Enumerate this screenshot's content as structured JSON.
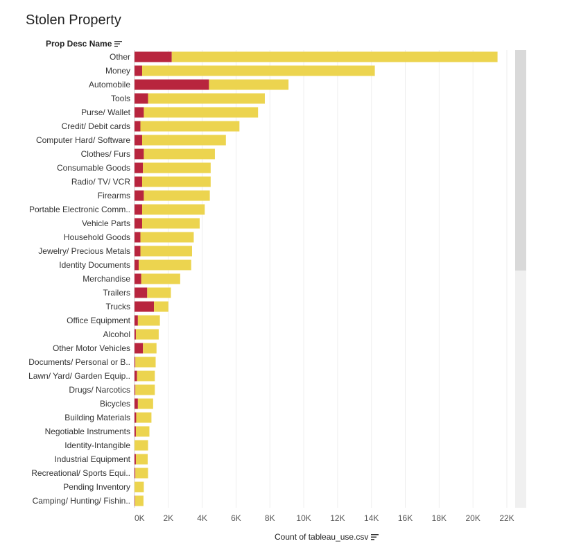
{
  "title": "Stolen Property",
  "row_header": "Prop Desc Name",
  "x_axis_title": "Count of tableau_use.csv",
  "colors": {
    "red": "#b8253e",
    "yellow": "#ecd44f",
    "grid": "#eeeeee"
  },
  "icons": {
    "sort": "sort-descending-icon"
  },
  "chart_data": {
    "type": "bar",
    "orientation": "horizontal",
    "stacked": true,
    "title": "Stolen Property",
    "xlabel": "Count of tableau_use.csv",
    "ylabel": "Prop Desc Name",
    "xlim": [
      0,
      22000
    ],
    "x_ticks": [
      0,
      2000,
      4000,
      6000,
      8000,
      10000,
      12000,
      14000,
      16000,
      18000,
      20000,
      22000
    ],
    "x_tick_labels": [
      "0K",
      "2K",
      "4K",
      "6K",
      "8K",
      "10K",
      "12K",
      "14K",
      "16K",
      "18K",
      "20K",
      "22K"
    ],
    "categories": [
      "Other",
      "Money",
      "Automobile",
      "Tools",
      "Purse/ Wallet",
      "Credit/ Debit cards",
      "Computer Hard/ Software",
      "Clothes/ Furs",
      "Consumable Goods",
      "Radio/ TV/ VCR",
      "Firearms",
      "Portable Electronic Comm..",
      "Vehicle Parts",
      "Household Goods",
      "Jewelry/ Precious Metals",
      "Identity Documents",
      "Merchandise",
      "Trailers",
      "Trucks",
      "Office Equipment",
      "Alcohol",
      "Other Motor Vehicles",
      "Documents/ Personal or B..",
      "Lawn/ Yard/ Garden Equip..",
      "Drugs/ Narcotics",
      "Bicycles",
      "Building Materials",
      "Negotiable Instruments",
      "Identity-Intangible",
      "Industrial Equipment",
      "Recreational/ Sports Equi..",
      "Pending Inventory",
      "Camping/ Hunting/ Fishin.."
    ],
    "series": [
      {
        "name": "red",
        "color": "#b8253e",
        "values": [
          2200,
          450,
          4400,
          800,
          550,
          350,
          450,
          550,
          500,
          450,
          550,
          450,
          450,
          350,
          350,
          250,
          400,
          750,
          1150,
          200,
          80,
          500,
          50,
          150,
          50,
          200,
          100,
          80,
          0,
          80,
          50,
          0,
          30
        ]
      },
      {
        "name": "yellow",
        "color": "#ecd44f",
        "values": [
          19250,
          13750,
          4700,
          6900,
          6750,
          5850,
          4950,
          4200,
          4000,
          4050,
          3900,
          3700,
          3400,
          3150,
          3050,
          3100,
          2300,
          1400,
          850,
          1300,
          1350,
          800,
          1200,
          1050,
          1150,
          900,
          900,
          800,
          800,
          700,
          750,
          550,
          500
        ]
      }
    ]
  }
}
